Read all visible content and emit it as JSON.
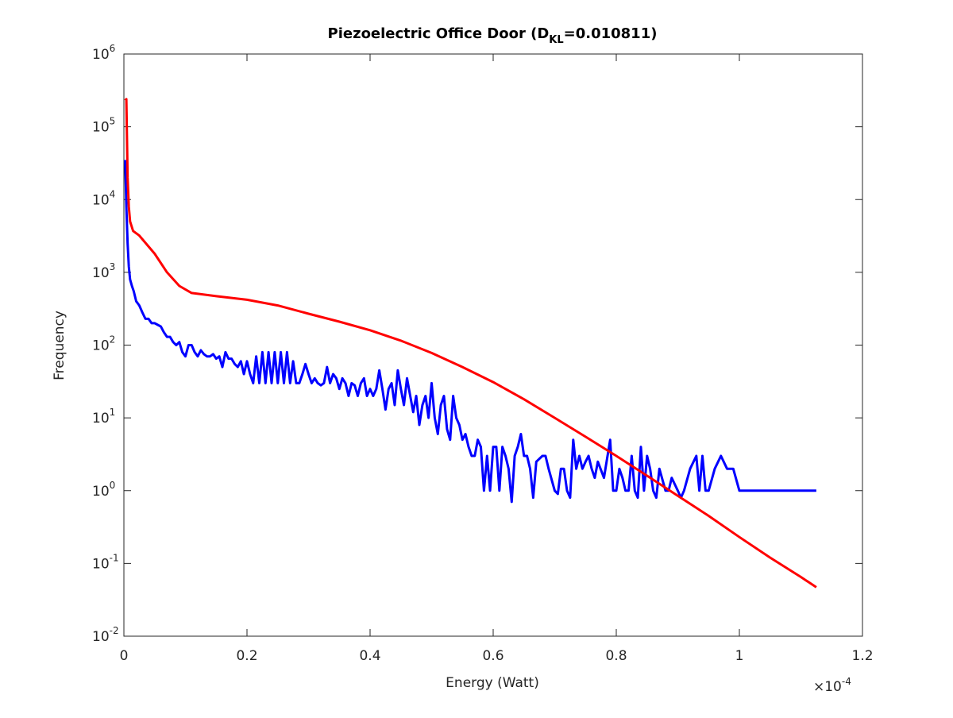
{
  "chart_data": {
    "type": "line",
    "title": [
      "Piezoelectric Office Door (D",
      "KL",
      "=0.010811)"
    ],
    "xlabel": "Energy (Watt)",
    "ylabel": "Frequency",
    "x_multiplier": [
      "×10",
      "-4"
    ],
    "xlim": [
      0,
      1.2
    ],
    "xticks": [
      0,
      0.2,
      0.4,
      0.6,
      0.8,
      1,
      1.2
    ],
    "ylim": [
      0.01,
      1000000
    ],
    "ylog": true,
    "yticks": [
      {
        "value": 0.01,
        "label": "10",
        "exponent": "-2"
      },
      {
        "value": 0.1,
        "label": "10",
        "exponent": "-1"
      },
      {
        "value": 1,
        "label": "10",
        "exponent": "0"
      },
      {
        "value": 10,
        "label": "10",
        "exponent": "1"
      },
      {
        "value": 100,
        "label": "10",
        "exponent": "2"
      },
      {
        "value": 1000,
        "label": "10",
        "exponent": "3"
      },
      {
        "value": 10000,
        "label": "10",
        "exponent": "4"
      },
      {
        "value": 100000,
        "label": "10",
        "exponent": "5"
      },
      {
        "value": 1000000,
        "label": "10",
        "exponent": "6"
      }
    ],
    "series": [
      {
        "color": "#0000ff",
        "x": [
          0.002,
          0.004,
          0.006,
          0.008,
          0.01,
          0.013,
          0.016,
          0.02,
          0.025,
          0.03,
          0.035,
          0.04,
          0.045,
          0.05,
          0.055,
          0.06,
          0.065,
          0.07,
          0.075,
          0.08,
          0.085,
          0.09,
          0.095,
          0.1,
          0.105,
          0.11,
          0.115,
          0.12,
          0.125,
          0.13,
          0.135,
          0.14,
          0.145,
          0.15,
          0.155,
          0.16,
          0.165,
          0.17,
          0.175,
          0.18,
          0.185,
          0.19,
          0.195,
          0.2,
          0.205,
          0.21,
          0.215,
          0.22,
          0.225,
          0.23,
          0.235,
          0.24,
          0.245,
          0.25,
          0.255,
          0.26,
          0.265,
          0.27,
          0.275,
          0.28,
          0.285,
          0.29,
          0.295,
          0.3,
          0.305,
          0.31,
          0.315,
          0.32,
          0.325,
          0.33,
          0.335,
          0.34,
          0.345,
          0.35,
          0.355,
          0.36,
          0.365,
          0.37,
          0.375,
          0.38,
          0.385,
          0.39,
          0.395,
          0.4,
          0.405,
          0.41,
          0.415,
          0.42,
          0.425,
          0.43,
          0.435,
          0.44,
          0.445,
          0.45,
          0.455,
          0.46,
          0.47,
          0.475,
          0.48,
          0.485,
          0.49,
          0.495,
          0.5,
          0.505,
          0.51,
          0.515,
          0.52,
          0.525,
          0.53,
          0.535,
          0.54,
          0.545,
          0.55,
          0.555,
          0.56,
          0.565,
          0.57,
          0.575,
          0.58,
          0.585,
          0.59,
          0.595,
          0.6,
          0.605,
          0.61,
          0.615,
          0.62,
          0.625,
          0.63,
          0.635,
          0.64,
          0.645,
          0.65,
          0.655,
          0.66,
          0.665,
          0.67,
          0.68,
          0.685,
          0.69,
          0.7,
          0.705,
          0.71,
          0.715,
          0.72,
          0.725,
          0.73,
          0.735,
          0.74,
          0.745,
          0.75,
          0.755,
          0.76,
          0.765,
          0.77,
          0.78,
          0.79,
          0.795,
          0.8,
          0.805,
          0.81,
          0.815,
          0.82,
          0.825,
          0.83,
          0.835,
          0.84,
          0.845,
          0.85,
          0.855,
          0.86,
          0.865,
          0.87,
          0.88,
          0.885,
          0.89,
          0.9,
          0.905,
          0.91,
          0.92,
          0.93,
          0.935,
          0.94,
          0.945,
          0.95,
          0.96,
          0.97,
          0.98,
          0.99,
          1.0,
          1.125
        ],
        "values": [
          35000,
          8000,
          2500,
          1200,
          800,
          650,
          550,
          400,
          350,
          280,
          230,
          230,
          200,
          200,
          190,
          180,
          150,
          130,
          130,
          110,
          100,
          110,
          80,
          70,
          100,
          100,
          80,
          70,
          85,
          75,
          70,
          70,
          75,
          65,
          70,
          50,
          80,
          65,
          65,
          55,
          50,
          60,
          40,
          60,
          40,
          30,
          70,
          30,
          80,
          30,
          80,
          30,
          80,
          30,
          80,
          30,
          80,
          30,
          60,
          30,
          30,
          40,
          55,
          40,
          30,
          35,
          30,
          28,
          30,
          50,
          30,
          40,
          35,
          25,
          35,
          30,
          20,
          30,
          28,
          20,
          30,
          35,
          20,
          25,
          20,
          25,
          45,
          25,
          13,
          25,
          30,
          15,
          45,
          25,
          15,
          35,
          12,
          20,
          8,
          15,
          20,
          10,
          30,
          10,
          6,
          15,
          20,
          7,
          5,
          20,
          10,
          8,
          5,
          6,
          4,
          3,
          3,
          5,
          4,
          1,
          3,
          1,
          4,
          4,
          1,
          4,
          3,
          2,
          0.7,
          3,
          4,
          6,
          3,
          3,
          2,
          0.8,
          2.5,
          3,
          3,
          2,
          1,
          0.9,
          2,
          2,
          1,
          0.8,
          5,
          2,
          3,
          2,
          2.5,
          3,
          2,
          1.5,
          2.5,
          1.5,
          5,
          1,
          1,
          2,
          1.5,
          1,
          1,
          3,
          1,
          0.8,
          4,
          1,
          3,
          2,
          1,
          0.8,
          2,
          1,
          1,
          1.5,
          1,
          0.8,
          1,
          2,
          3,
          1,
          3,
          1,
          1,
          2,
          3,
          2,
          2,
          1,
          1
        ]
      },
      {
        "color": "#ff0000",
        "x": [
          0.002,
          0.004,
          0.006,
          0.008,
          0.01,
          0.015,
          0.025,
          0.05,
          0.07,
          0.09,
          0.11,
          0.15,
          0.2,
          0.25,
          0.3,
          0.35,
          0.4,
          0.45,
          0.5,
          0.55,
          0.6,
          0.65,
          0.7,
          0.75,
          0.8,
          0.85,
          0.9,
          0.95,
          1.0,
          1.05,
          1.1,
          1.125
        ],
        "values": [
          230000,
          240000,
          20000,
          8000,
          5000,
          3700,
          3200,
          1800,
          1000,
          650,
          520,
          470,
          420,
          350,
          270,
          210,
          160,
          115,
          78,
          50,
          31,
          18,
          10,
          5.5,
          3,
          1.6,
          0.85,
          0.45,
          0.23,
          0.12,
          0.065,
          0.047
        ]
      }
    ]
  }
}
